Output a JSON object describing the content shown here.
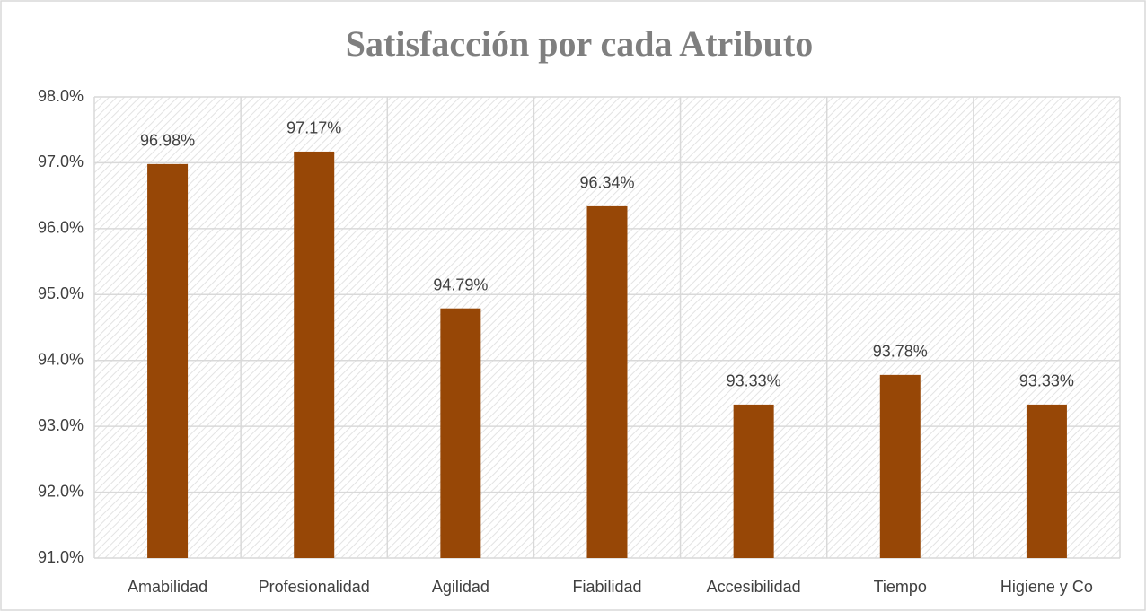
{
  "chart_data": {
    "type": "bar",
    "title": "Satisfacción por cada Atributo",
    "categories": [
      "Amabilidad",
      "Profesionalidad",
      "Agilidad",
      "Fiabilidad",
      "Accesibilidad",
      "Tiempo",
      "Higiene y Co"
    ],
    "values": [
      96.98,
      97.17,
      94.79,
      96.34,
      93.33,
      93.78,
      93.33
    ],
    "value_labels": [
      "96.98%",
      "97.17%",
      "94.79%",
      "96.34%",
      "93.33%",
      "93.78%",
      "93.33%"
    ],
    "color": "#974706",
    "ylim": [
      91,
      98
    ],
    "yticks": [
      {
        "value": 91,
        "label": "91.0%"
      },
      {
        "value": 92,
        "label": "92.0%"
      },
      {
        "value": 93,
        "label": "93.0%"
      },
      {
        "value": 94,
        "label": "94.0%"
      },
      {
        "value": 95,
        "label": "95.0%"
      },
      {
        "value": 96,
        "label": "96.0%"
      },
      {
        "value": 97,
        "label": "97.0%"
      },
      {
        "value": 98,
        "label": "98.0%"
      }
    ],
    "grid": true
  }
}
